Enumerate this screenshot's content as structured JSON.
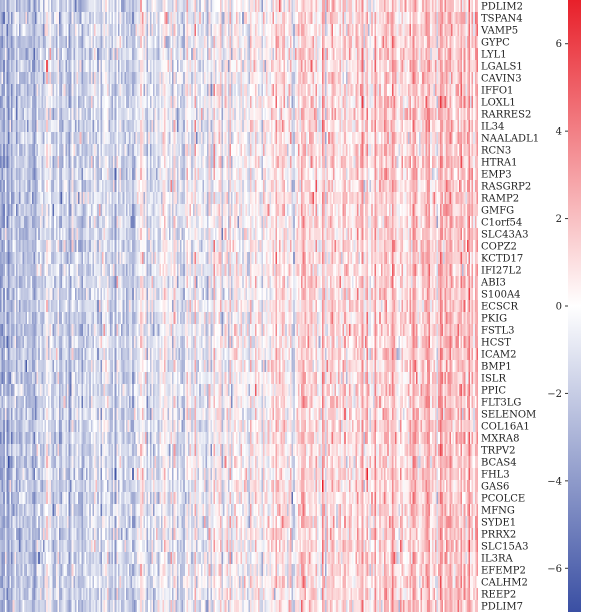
{
  "colors": {
    "low": "#3a4fa3",
    "mid": "#ffffff",
    "high": "#e8202a"
  },
  "chart_data": {
    "type": "heatmap",
    "title": "",
    "xlabel": "",
    "ylabel": "",
    "rows": [
      "PDLIM2",
      "TSPAN4",
      "VAMP5",
      "GYPC",
      "LYL1",
      "LGALS1",
      "CAVIN3",
      "IFFO1",
      "LOXL1",
      "RARRES2",
      "IL34",
      "NAALADL1",
      "RCN3",
      "HTRA1",
      "EMP3",
      "RASGRP2",
      "RAMP2",
      "GMFG",
      "C1orf54",
      "SLC43A3",
      "COPZ2",
      "KCTD17",
      "IFI27L2",
      "ABI3",
      "S100A4",
      "ECSCR",
      "PKIG",
      "FSTL3",
      "HCST",
      "ICAM2",
      "BMP1",
      "ISLR",
      "PPIC",
      "FLT3LG",
      "SELENOM",
      "COL16A1",
      "MXRA8",
      "TRPV2",
      "BCAS4",
      "FHL3",
      "GAS6",
      "PCOLCE",
      "MFNG",
      "SYDE1",
      "PRRX2",
      "SLC15A3",
      "IL3RA",
      "EFEMP2",
      "CALHM2",
      "REEP2",
      "PDLIM7"
    ],
    "n_columns": 300,
    "column_order": "samples sorted from low (left) to high (right) score",
    "color_range": [
      -7,
      7
    ],
    "colorbar_ticks": [
      6,
      4,
      2,
      0,
      -2,
      -4,
      -6
    ],
    "colorbar_tick_labels": [
      "6",
      "4",
      "2",
      "0",
      "−2",
      "−4",
      "−6"
    ],
    "legend": "right"
  }
}
